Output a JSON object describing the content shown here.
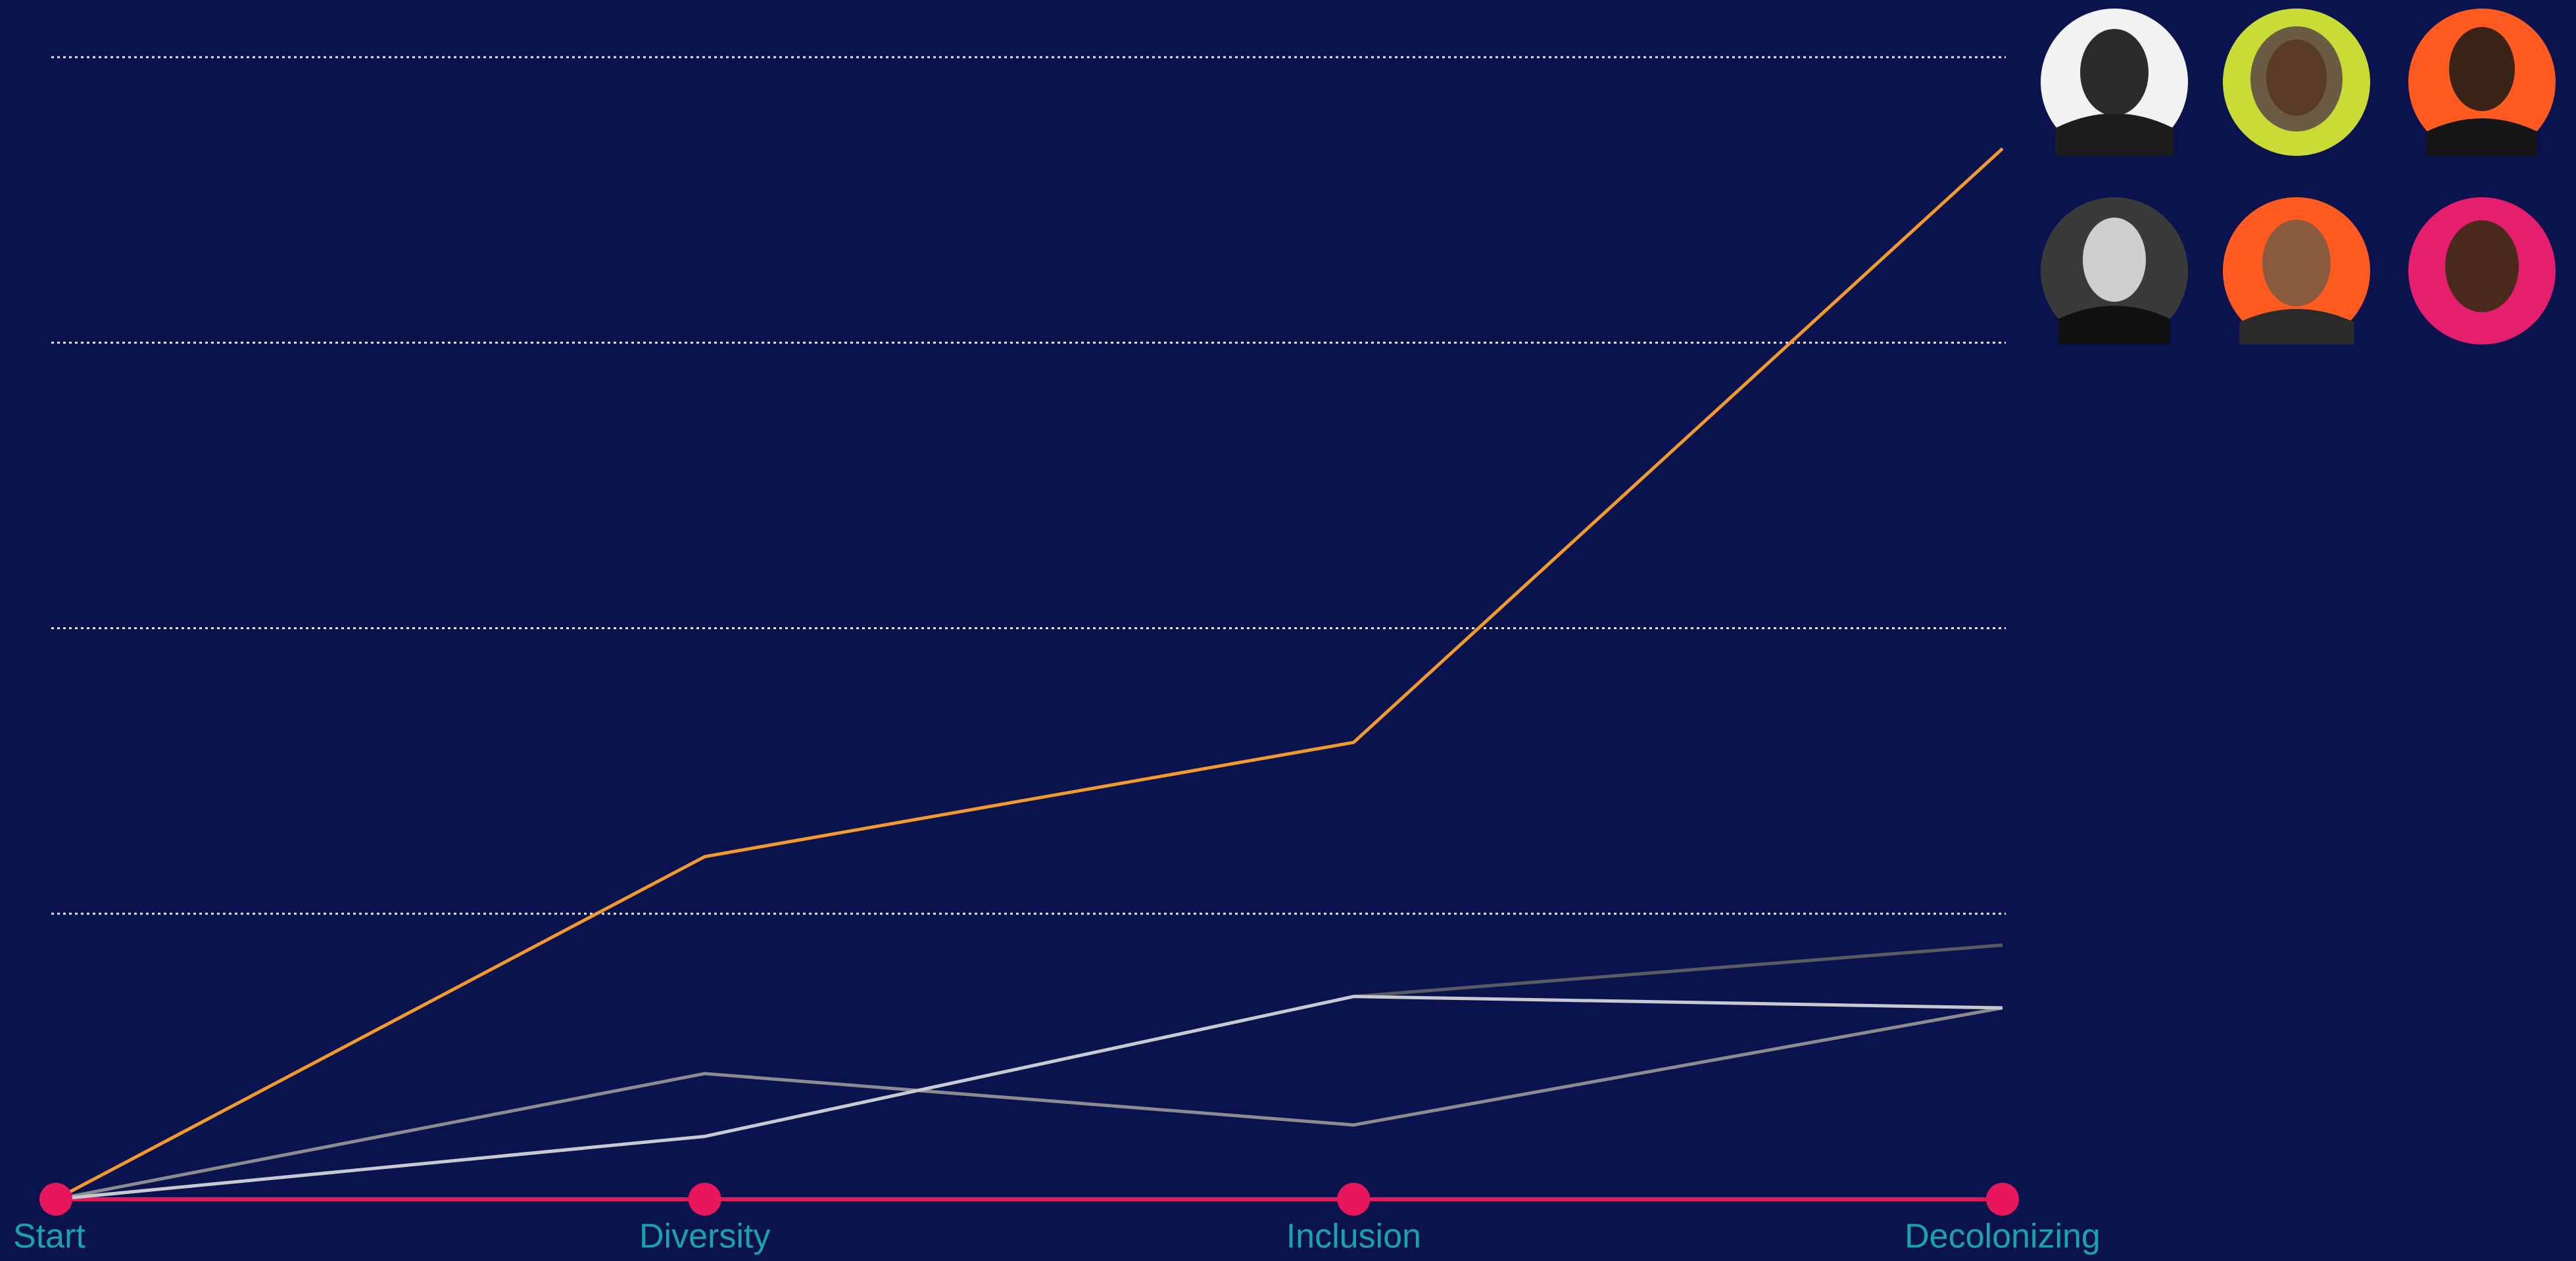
{
  "chart_data": {
    "type": "line",
    "categories": [
      "Start",
      "Diversity",
      "Inclusion",
      "Decolonizing"
    ],
    "series": [
      {
        "color": "#5a5a62",
        "values": [
          0,
          0.22,
          0.71,
          0.89
        ]
      },
      {
        "color": "#8c8c90",
        "values": [
          0,
          0.44,
          0.26,
          0.67
        ]
      },
      {
        "color": "#c9c9d2",
        "values": [
          0,
          0.22,
          0.71,
          0.67
        ]
      },
      {
        "color": "#f29a2e",
        "values": [
          0,
          1.2,
          1.6,
          3.68
        ]
      }
    ],
    "ylim": [
      0,
      4
    ],
    "yticks": [
      1,
      2,
      3,
      4
    ],
    "grid": true,
    "axis_color": "#e8175d",
    "label_color": "#19a3b1"
  }
}
